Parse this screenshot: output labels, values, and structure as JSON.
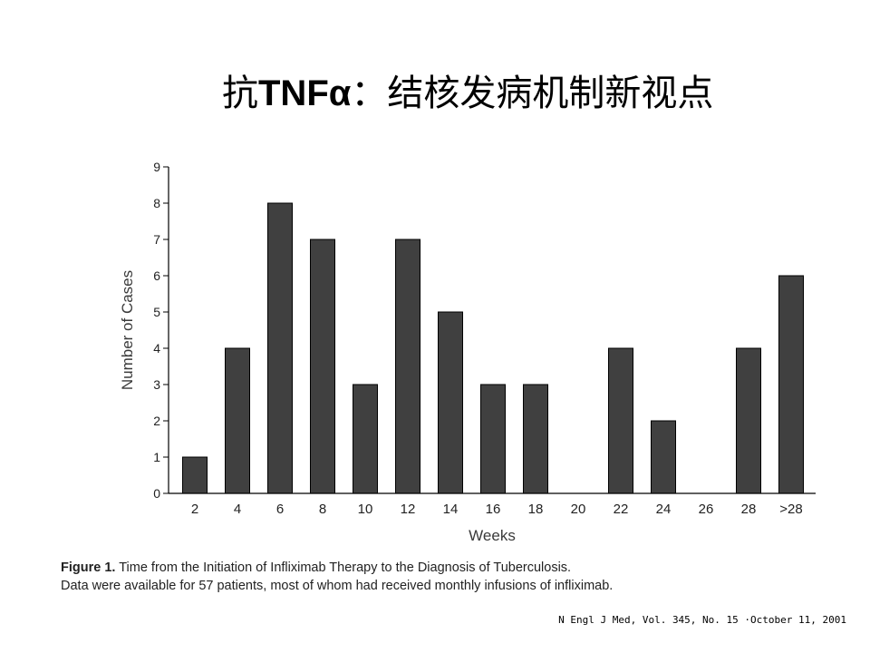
{
  "slide": {
    "title_prefix": "抗",
    "title_latin": "TNFα",
    "title_suffix": "：结核发病机制新视点"
  },
  "chart_data": {
    "type": "bar",
    "xlabel": "Weeks",
    "ylabel": "Number of Cases",
    "categories": [
      "2",
      "4",
      "6",
      "8",
      "10",
      "12",
      "14",
      "16",
      "18",
      "20",
      "22",
      "24",
      "26",
      "28",
      ">28"
    ],
    "values": [
      1,
      4,
      8,
      7,
      3,
      7,
      5,
      3,
      3,
      0,
      4,
      2,
      0,
      4,
      6
    ],
    "ylim": [
      0,
      9
    ],
    "yticks": [
      0,
      1,
      2,
      3,
      4,
      5,
      6,
      7,
      8,
      9
    ],
    "grid": false,
    "bar_color": "#404040"
  },
  "caption": {
    "figure_label": "Figure 1.",
    "line1": " Time from the Initiation of Infliximab Therapy to the Diagnosis of Tuberculosis.",
    "line2": "Data were available for 57 patients, most of whom had received monthly infusions of infliximab."
  },
  "citation": "N Engl J Med, Vol. 345, No. 15 ·October 11, 2001"
}
